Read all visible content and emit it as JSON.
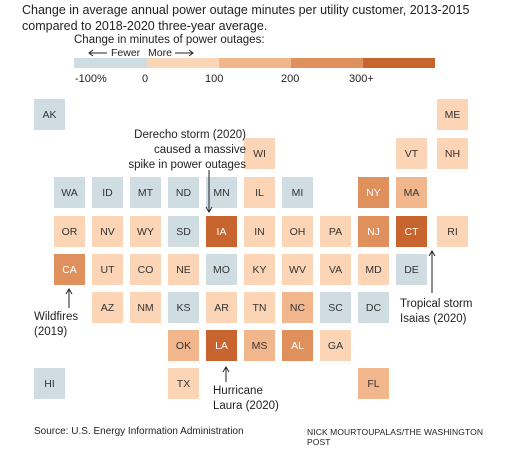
{
  "header": {
    "subtitle": "Change in average annual power outage minutes per utility customer, 2013-2015 compared to 2018-2020 three-year average."
  },
  "legend": {
    "title": "Change in minutes of power outages:",
    "fewer_label": "Fewer",
    "more_label": "More",
    "ticks": [
      "-100%",
      "0",
      "100",
      "200",
      "300+"
    ],
    "colors": [
      "#cfdde3",
      "#fbd5b6",
      "#f1b68c",
      "#e0905d",
      "#c8642e"
    ]
  },
  "colors": {
    "blue": "#cfdde3",
    "pale": "#fbd5b6",
    "light": "#f1b68c",
    "mid": "#e0905d",
    "dark": "#c8642e"
  },
  "states": [
    {
      "abbr": "AK",
      "row": 0,
      "col": 0,
      "level": "blue"
    },
    {
      "abbr": "ME",
      "row": 0,
      "col": 11,
      "level": "pale"
    },
    {
      "abbr": "WI",
      "row": 1,
      "col": 6,
      "level": "pale"
    },
    {
      "abbr": "VT",
      "row": 1,
      "col": 10,
      "level": "pale"
    },
    {
      "abbr": "NH",
      "row": 1,
      "col": 11,
      "level": "pale"
    },
    {
      "abbr": "WA",
      "row": 2,
      "col": 1,
      "level": "blue"
    },
    {
      "abbr": "ID",
      "row": 2,
      "col": 2,
      "level": "blue"
    },
    {
      "abbr": "MT",
      "row": 2,
      "col": 3,
      "level": "blue"
    },
    {
      "abbr": "ND",
      "row": 2,
      "col": 4,
      "level": "blue"
    },
    {
      "abbr": "MN",
      "row": 2,
      "col": 5,
      "level": "blue"
    },
    {
      "abbr": "IL",
      "row": 2,
      "col": 6,
      "level": "pale"
    },
    {
      "abbr": "MI",
      "row": 2,
      "col": 7,
      "level": "blue"
    },
    {
      "abbr": "NY",
      "row": 2,
      "col": 9,
      "level": "mid"
    },
    {
      "abbr": "MA",
      "row": 2,
      "col": 10,
      "level": "light"
    },
    {
      "abbr": "OR",
      "row": 3,
      "col": 1,
      "level": "pale"
    },
    {
      "abbr": "NV",
      "row": 3,
      "col": 2,
      "level": "pale"
    },
    {
      "abbr": "WY",
      "row": 3,
      "col": 3,
      "level": "pale"
    },
    {
      "abbr": "SD",
      "row": 3,
      "col": 4,
      "level": "blue"
    },
    {
      "abbr": "IA",
      "row": 3,
      "col": 5,
      "level": "dark"
    },
    {
      "abbr": "IN",
      "row": 3,
      "col": 6,
      "level": "pale"
    },
    {
      "abbr": "OH",
      "row": 3,
      "col": 7,
      "level": "pale"
    },
    {
      "abbr": "PA",
      "row": 3,
      "col": 8,
      "level": "pale"
    },
    {
      "abbr": "NJ",
      "row": 3,
      "col": 9,
      "level": "mid"
    },
    {
      "abbr": "CT",
      "row": 3,
      "col": 10,
      "level": "dark"
    },
    {
      "abbr": "RI",
      "row": 3,
      "col": 11,
      "level": "pale"
    },
    {
      "abbr": "CA",
      "row": 4,
      "col": 1,
      "level": "mid"
    },
    {
      "abbr": "UT",
      "row": 4,
      "col": 2,
      "level": "pale"
    },
    {
      "abbr": "CO",
      "row": 4,
      "col": 3,
      "level": "pale"
    },
    {
      "abbr": "NE",
      "row": 4,
      "col": 4,
      "level": "pale"
    },
    {
      "abbr": "MO",
      "row": 4,
      "col": 5,
      "level": "blue"
    },
    {
      "abbr": "KY",
      "row": 4,
      "col": 6,
      "level": "pale"
    },
    {
      "abbr": "WV",
      "row": 4,
      "col": 7,
      "level": "pale"
    },
    {
      "abbr": "VA",
      "row": 4,
      "col": 8,
      "level": "pale"
    },
    {
      "abbr": "MD",
      "row": 4,
      "col": 9,
      "level": "pale"
    },
    {
      "abbr": "DE",
      "row": 4,
      "col": 10,
      "level": "blue"
    },
    {
      "abbr": "AZ",
      "row": 5,
      "col": 2,
      "level": "pale"
    },
    {
      "abbr": "NM",
      "row": 5,
      "col": 3,
      "level": "pale"
    },
    {
      "abbr": "KS",
      "row": 5,
      "col": 4,
      "level": "blue"
    },
    {
      "abbr": "AR",
      "row": 5,
      "col": 5,
      "level": "pale"
    },
    {
      "abbr": "TN",
      "row": 5,
      "col": 6,
      "level": "pale"
    },
    {
      "abbr": "NC",
      "row": 5,
      "col": 7,
      "level": "light"
    },
    {
      "abbr": "SC",
      "row": 5,
      "col": 8,
      "level": "blue"
    },
    {
      "abbr": "DC",
      "row": 5,
      "col": 9,
      "level": "blue"
    },
    {
      "abbr": "OK",
      "row": 6,
      "col": 4,
      "level": "light"
    },
    {
      "abbr": "LA",
      "row": 6,
      "col": 5,
      "level": "dark"
    },
    {
      "abbr": "MS",
      "row": 6,
      "col": 6,
      "level": "light"
    },
    {
      "abbr": "AL",
      "row": 6,
      "col": 7,
      "level": "mid"
    },
    {
      "abbr": "GA",
      "row": 6,
      "col": 8,
      "level": "pale"
    },
    {
      "abbr": "HI",
      "row": 7,
      "col": 0,
      "level": "blue"
    },
    {
      "abbr": "TX",
      "row": 7,
      "col": 4,
      "level": "pale"
    },
    {
      "abbr": "FL",
      "row": 7,
      "col": 9,
      "level": "light"
    }
  ],
  "annotations": {
    "derecho": "Derecho storm (2020) caused a massive spike in power outages",
    "wildfires": "Wildfires (2019)",
    "isaias": "Tropical storm Isaias (2020)",
    "laura": "Hurricane Laura (2020)"
  },
  "footer": {
    "source": "Source: U.S. Energy Information Administration",
    "credit": "NICK MOURTOUPALAS/THE WASHINGTON POST"
  }
}
